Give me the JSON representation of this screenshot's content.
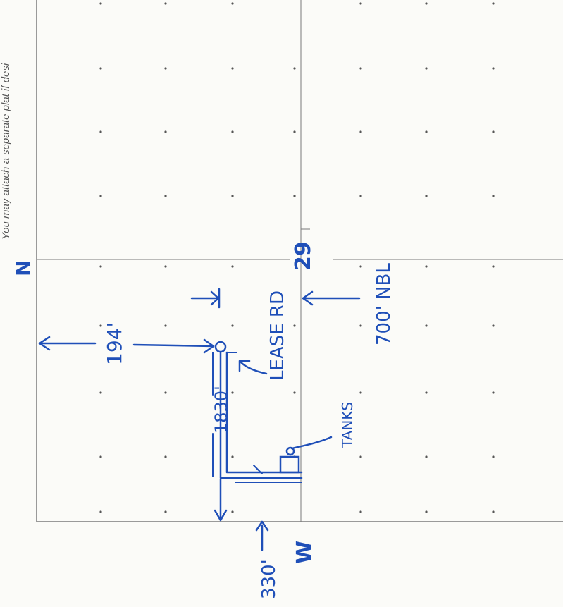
{
  "header": {
    "note": "You may attach a separate plat if desi"
  },
  "plat": {
    "north_label": "N",
    "section_number": "29",
    "distance_from_north_line": "194'",
    "distance_from_north_line_ref": "700' NBL",
    "road_length": "1830'",
    "road_label": "LEASE RD",
    "tanks_label": "TANKS",
    "distance_from_west_line": "330'",
    "west_label": "W"
  },
  "colors": {
    "ink": "#1f4fb8",
    "grid": "#7a7a7a",
    "paper": "#fbfbf8"
  }
}
